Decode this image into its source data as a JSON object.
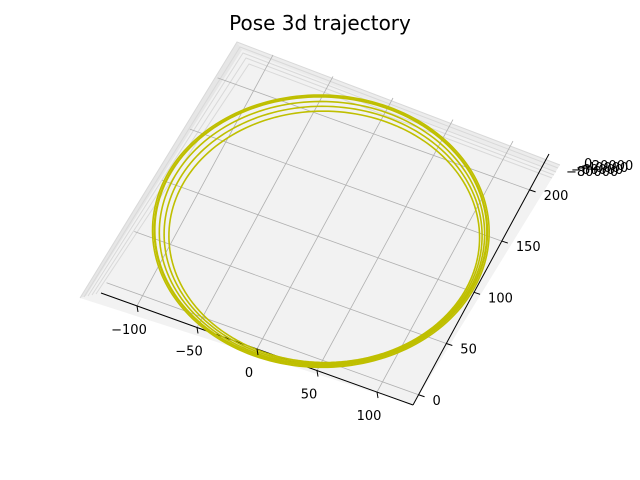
{
  "chart_data": {
    "type": "line",
    "projection": "3d",
    "title": "Pose 3d trajectory",
    "xlabel": "",
    "ylabel": "",
    "zlabel": "",
    "grid": true,
    "x_ticks": [
      "−100",
      "−50",
      "0",
      "50",
      "100"
    ],
    "y_ticks": [
      "0",
      "50",
      "100",
      "150",
      "200"
    ],
    "z_ticks": [
      "−80000",
      "−60000",
      "−40000",
      "−20000",
      "0"
    ],
    "xlim": [
      -130,
      130
    ],
    "ylim": [
      -10,
      235
    ],
    "series": [
      {
        "color": "#bfbf00",
        "shape": "circle",
        "center_x": 0,
        "center_y": 105,
        "radius_x": 127,
        "radius_y": 120,
        "loops": 4,
        "z_range": [
          -80000,
          0
        ]
      }
    ]
  }
}
